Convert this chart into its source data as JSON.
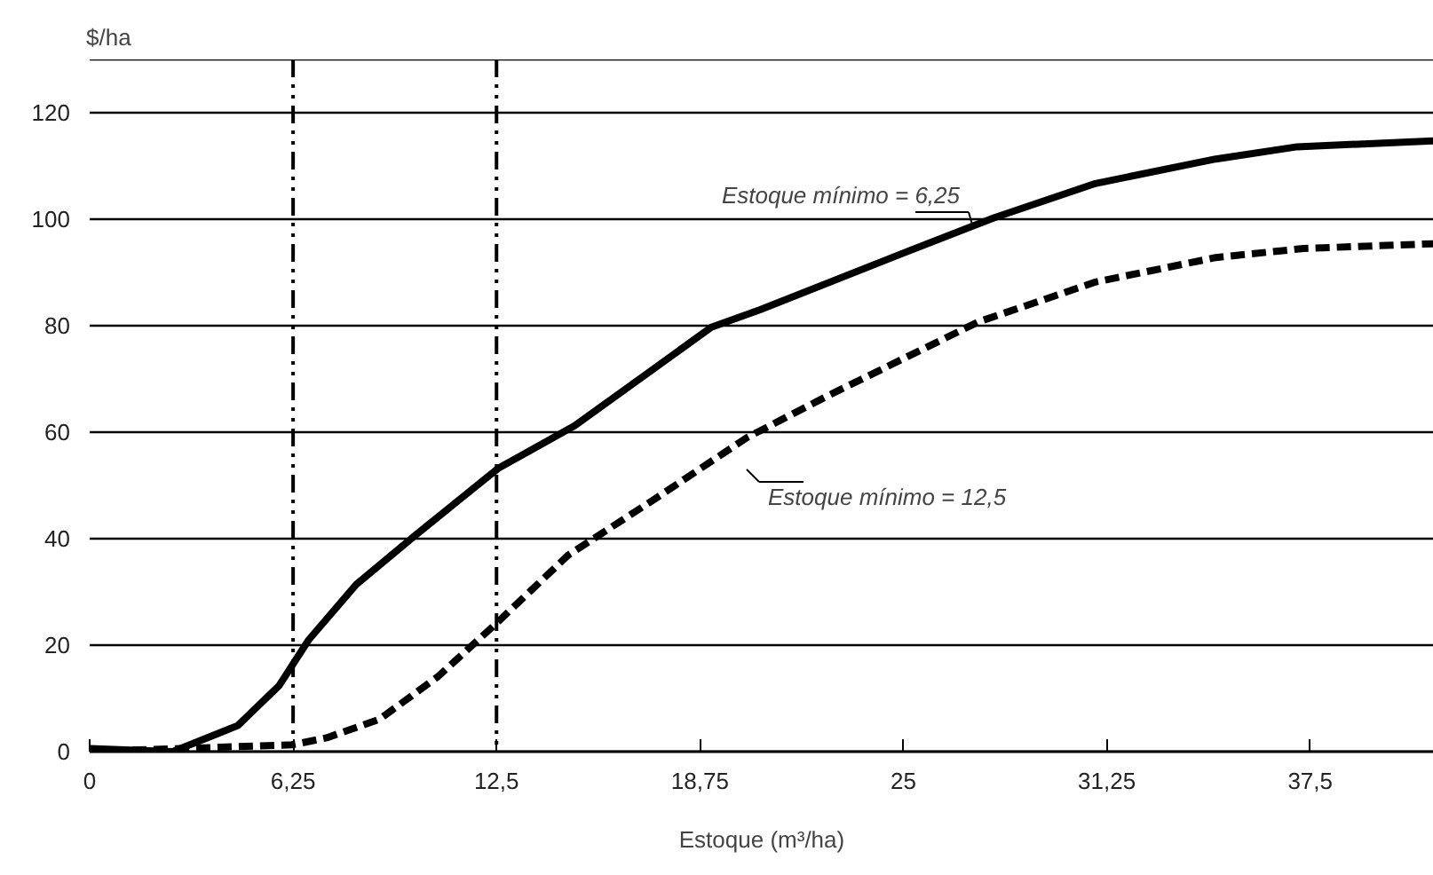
{
  "chart_data": {
    "type": "line",
    "ylabel": "$/ha",
    "xlabel": "Estoque (m³/ha)",
    "xlim": [
      0,
      41.3
    ],
    "ylim": [
      0,
      130
    ],
    "xticks": [
      0,
      {
        "value": 6.25,
        "label": "6,25"
      },
      {
        "value": 12.5,
        "label": "12,5"
      },
      {
        "value": 18.75,
        "label": "18,75"
      },
      25,
      {
        "value": 31.25,
        "label": "31,25"
      },
      {
        "value": 37.5,
        "label": "37,5"
      }
    ],
    "yticks": [
      0,
      20,
      40,
      60,
      80,
      100,
      120,
      {
        "value": 130,
        "label": null
      }
    ],
    "grid": "y",
    "marker": "none",
    "series": [
      {
        "color": "#000000",
        "line_style": "solid",
        "x": [
          0,
          2.55,
          4.55,
          5.82,
          6.73,
          8.19,
          10.0,
          12.55,
          14.9,
          19.1,
          20.6,
          24.9,
          27.8,
          30.9,
          34.6,
          37.1,
          41.3
        ],
        "values": [
          0.6,
          0,
          4.9,
          12.4,
          21,
          31.4,
          40.6,
          53.2,
          61.2,
          79.7,
          83,
          93.4,
          100.3,
          106.7,
          111.3,
          113.6,
          114.7
        ]
      },
      {
        "color": "#000000",
        "line_style": "dashed",
        "x": [
          0,
          6.25,
          7.28,
          8.91,
          10.7,
          12.55,
          14.7,
          17.3,
          20.2,
          22.7,
          27.3,
          30.9,
          34.6,
          37.3,
          41.3
        ],
        "values": [
          0,
          1.3,
          2.6,
          6.1,
          14.1,
          24.4,
          36.9,
          47.2,
          59,
          66.9,
          80.7,
          88.2,
          92.8,
          94.5,
          95.4
        ]
      }
    ],
    "ref_lines": [
      {
        "axis": "x",
        "value": 6.25,
        "color": "#000000",
        "line_style": "dashed"
      },
      {
        "axis": "x",
        "value": 12.5,
        "color": "#000000",
        "line_style": "dashed"
      }
    ],
    "annotations": [
      "Estoque mínimo = 6,25",
      "Estoque mínimo = 12,5"
    ]
  }
}
